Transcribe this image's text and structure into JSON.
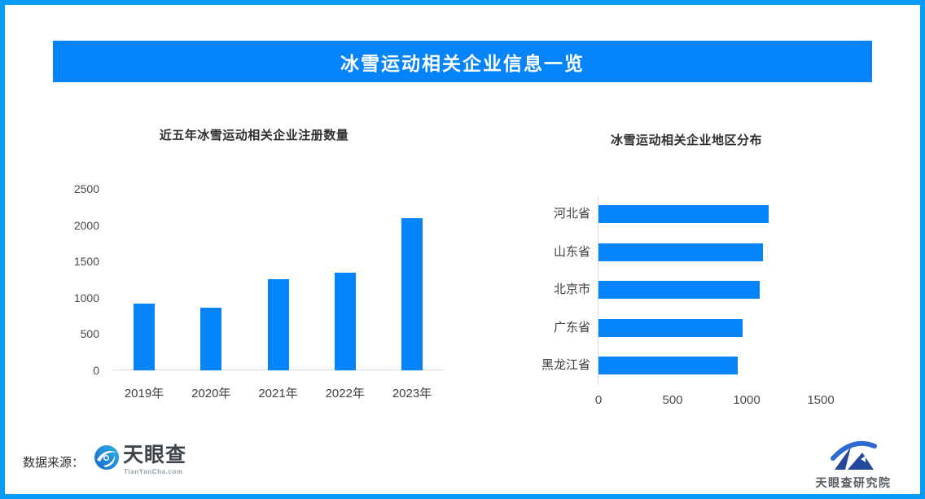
{
  "page": {
    "background": "#ffffff",
    "frame_border_color": "#089cf8",
    "accent_blue": "#0584fa",
    "axis_gray": "#d9d9d9"
  },
  "header": {
    "title": "冰雪运动相关企业信息一览",
    "background_color": "#0584fa",
    "text_color": "#ffffff"
  },
  "chart_data": [
    {
      "type": "bar",
      "orientation": "vertical",
      "title": "近五年冰雪运动相关企业注册数量",
      "categories": [
        "2019年",
        "2020年",
        "2021年",
        "2022年",
        "2023年"
      ],
      "values": [
        920,
        860,
        1250,
        1350,
        2100
      ],
      "xlabel": "",
      "ylabel": "",
      "ylim": [
        0,
        2500
      ],
      "yticks": [
        0,
        500,
        1000,
        1500,
        2000,
        2500
      ],
      "grid": false,
      "legend": false,
      "bar_color": "#0584fa"
    },
    {
      "type": "bar",
      "orientation": "horizontal",
      "title": "冰雪运动相关企业地区分布",
      "categories": [
        "河北省",
        "山东省",
        "北京市",
        "广东省",
        "黑龙江省"
      ],
      "values": [
        1150,
        1110,
        1090,
        970,
        940
      ],
      "xlabel": "",
      "ylabel": "",
      "xlim": [
        0,
        1880
      ],
      "xticks": [
        0,
        500,
        1000,
        1500
      ],
      "grid": false,
      "legend": false,
      "bar_color": "#0584fa"
    }
  ],
  "footer": {
    "source_label": "数据来源：",
    "tianyancha_logo": {
      "name": "天眼查",
      "domain": "TianYanCha.com"
    },
    "research_logo": {
      "name": "天眼查研究院"
    }
  }
}
